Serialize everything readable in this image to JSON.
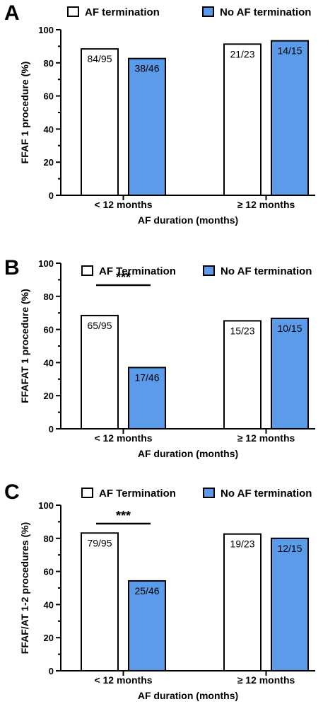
{
  "chart_data": [
    {
      "type": "bar",
      "panel": "A",
      "ylabel": "FFAF 1 procedure (%)",
      "xlabel": "AF duration (months)",
      "ylim": [
        0,
        100
      ],
      "yticks": [
        0,
        20,
        40,
        60,
        80,
        100
      ],
      "categories": [
        "< 12 months",
        "≥ 12 months"
      ],
      "series": [
        {
          "name": "AF termination",
          "color": "#ffffff",
          "values": [
            88.4,
            91.3
          ],
          "labels": [
            "84/95",
            "21/23"
          ]
        },
        {
          "name": "No  AF termination",
          "color": "#5b9bea",
          "values": [
            82.6,
            93.3
          ],
          "labels": [
            "38/46",
            "14/15"
          ]
        }
      ],
      "significance": []
    },
    {
      "type": "bar",
      "panel": "B",
      "ylabel": "FFAFAT 1 procedure (%)",
      "xlabel": "AF duration (months)",
      "ylim": [
        0,
        100
      ],
      "yticks": [
        0,
        20,
        40,
        60,
        80,
        100
      ],
      "categories": [
        "< 12 months",
        "≥ 12 months"
      ],
      "series": [
        {
          "name": "AF Termination",
          "color": "#ffffff",
          "values": [
            68.4,
            65.2
          ],
          "labels": [
            "65/95",
            "15/23"
          ]
        },
        {
          "name": "No AF termination",
          "color": "#5b9bea",
          "values": [
            37.0,
            66.7
          ],
          "labels": [
            "17/46",
            "10/15"
          ]
        }
      ],
      "significance": [
        {
          "category": 0,
          "text": "***"
        }
      ]
    },
    {
      "type": "bar",
      "panel": "C",
      "ylabel": "FFAF/AT 1-2 procedures (%)",
      "xlabel": "AF duration (months)",
      "ylim": [
        0,
        100
      ],
      "yticks": [
        0,
        20,
        40,
        60,
        80,
        100
      ],
      "categories": [
        "< 12 months",
        "≥ 12 months"
      ],
      "series": [
        {
          "name": "AF Termination",
          "color": "#ffffff",
          "values": [
            83.2,
            82.6
          ],
          "labels": [
            "79/95",
            "19/23"
          ]
        },
        {
          "name": "No AF termination",
          "color": "#5b9bea",
          "values": [
            54.3,
            80.0
          ],
          "labels": [
            "25/46",
            "12/15"
          ]
        }
      ],
      "significance": [
        {
          "category": 0,
          "text": "***"
        }
      ]
    }
  ]
}
